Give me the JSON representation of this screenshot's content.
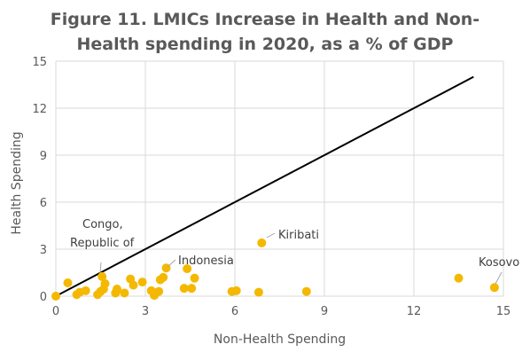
{
  "chart_data": {
    "type": "scatter",
    "title_line1": "Figure 11. LMICs Increase in Health and Non-",
    "title_line2": "Health spending in 2020, as a % of GDP",
    "xlabel": "Non-Health Spending",
    "ylabel": "Health Spending",
    "xlim": [
      0,
      15
    ],
    "ylim": [
      0,
      15
    ],
    "xticks": [
      "0",
      "3",
      "6",
      "9",
      "12",
      "15"
    ],
    "yticks": [
      "0",
      "3",
      "6",
      "9",
      "12",
      "15"
    ],
    "grid": "vertical and horizontal major gridlines",
    "point_color": "#F5B800",
    "line_color": "#000000",
    "reference_line": [
      [
        0,
        0
      ],
      [
        14,
        14
      ]
    ],
    "points": [
      [
        0.0,
        0.0
      ],
      [
        0.4,
        0.85
      ],
      [
        0.7,
        0.1
      ],
      [
        0.8,
        0.25
      ],
      [
        1.0,
        0.35
      ],
      [
        1.4,
        0.1
      ],
      [
        1.5,
        0.3
      ],
      [
        1.55,
        1.25
      ],
      [
        1.6,
        0.45
      ],
      [
        1.65,
        0.8
      ],
      [
        2.0,
        0.2
      ],
      [
        2.05,
        0.45
      ],
      [
        2.3,
        0.2
      ],
      [
        2.5,
        1.1
      ],
      [
        2.6,
        0.7
      ],
      [
        2.9,
        0.9
      ],
      [
        3.2,
        0.35
      ],
      [
        3.3,
        0.05
      ],
      [
        3.45,
        0.3
      ],
      [
        3.5,
        1.05
      ],
      [
        3.6,
        1.2
      ],
      [
        3.7,
        1.8
      ],
      [
        4.3,
        0.5
      ],
      [
        4.4,
        1.75
      ],
      [
        4.55,
        0.5
      ],
      [
        4.65,
        1.15
      ],
      [
        5.9,
        0.3
      ],
      [
        6.05,
        0.35
      ],
      [
        6.9,
        3.4
      ],
      [
        6.8,
        0.25
      ],
      [
        8.4,
        0.3
      ],
      [
        13.5,
        1.15
      ],
      [
        14.7,
        0.55
      ]
    ],
    "annotations": [
      {
        "lines": [
          "Congo,",
          "Republic of"
        ],
        "x": 1.55,
        "y": 1.25
      },
      {
        "lines": [
          "Indonesia"
        ],
        "x": 3.7,
        "y": 1.8
      },
      {
        "lines": [
          "Kiribati"
        ],
        "x": 6.9,
        "y": 3.4
      },
      {
        "lines": [
          "Kosovo"
        ],
        "x": 14.7,
        "y": 0.55
      }
    ]
  }
}
